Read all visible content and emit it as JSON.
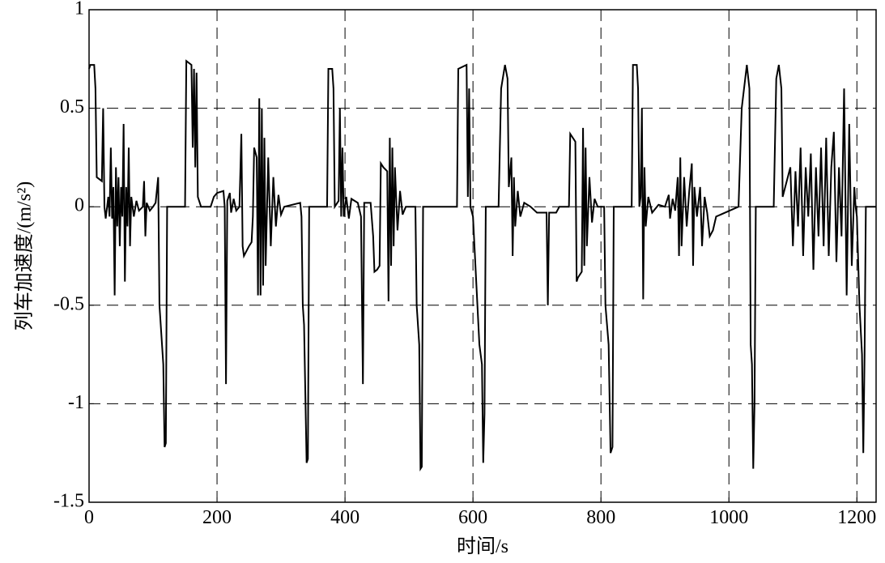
{
  "chart_data": {
    "type": "line",
    "xlabel": "时间/s",
    "ylabel": "列车加速度/(m/s²)",
    "xlim": [
      0,
      1230
    ],
    "ylim": [
      -1.5,
      1
    ],
    "xticks": [
      0,
      200,
      400,
      600,
      800,
      1000,
      1200
    ],
    "yticks": [
      -1.5,
      -1,
      -0.5,
      0,
      0.5,
      1
    ],
    "grid": true,
    "x": [
      0,
      2,
      8,
      10,
      12,
      20,
      22,
      24,
      26,
      30,
      32,
      34,
      36,
      38,
      40,
      42,
      44,
      46,
      48,
      50,
      52,
      54,
      56,
      58,
      60,
      62,
      64,
      66,
      70,
      74,
      78,
      84,
      86,
      88,
      90,
      95,
      100,
      104,
      108,
      110,
      112,
      116,
      118,
      120,
      122,
      150,
      152,
      160,
      162,
      164,
      166,
      168,
      170,
      175,
      190,
      195,
      200,
      210,
      212,
      214,
      216,
      220,
      222,
      226,
      230,
      235,
      238,
      240,
      242,
      250,
      254,
      256,
      258,
      262,
      264,
      266,
      268,
      270,
      272,
      274,
      276,
      280,
      284,
      288,
      292,
      296,
      300,
      305,
      330,
      332,
      334,
      336,
      338,
      340,
      342,
      344,
      372,
      374,
      380,
      382,
      384,
      390,
      392,
      394,
      396,
      398,
      402,
      406,
      410,
      420,
      425,
      428,
      430,
      440,
      444,
      446,
      450,
      454,
      456,
      460,
      466,
      468,
      470,
      472,
      474,
      476,
      478,
      482,
      486,
      490,
      495,
      510,
      512,
      516,
      518,
      520,
      522,
      575,
      577,
      590,
      592,
      594,
      596,
      600,
      610,
      614,
      616,
      618,
      620,
      640,
      644,
      650,
      654,
      656,
      660,
      662,
      664,
      666,
      670,
      674,
      680,
      690,
      700,
      715,
      717,
      719,
      730,
      735,
      750,
      752,
      760,
      762,
      764,
      770,
      772,
      774,
      776,
      778,
      782,
      786,
      790,
      795,
      805,
      807,
      812,
      815,
      818,
      820,
      848,
      850,
      856,
      858,
      860,
      862,
      864,
      866,
      868,
      870,
      874,
      880,
      890,
      900,
      906,
      908,
      912,
      916,
      920,
      922,
      924,
      926,
      930,
      934,
      938,
      942,
      944,
      946,
      950,
      955,
      958,
      962,
      966,
      970,
      975,
      980,
      1015,
      1020,
      1028,
      1032,
      1034,
      1036,
      1038,
      1040,
      1042,
      1070,
      1074,
      1078,
      1082,
      1084,
      1096,
      1100,
      1104,
      1108,
      1112,
      1116,
      1120,
      1124,
      1128,
      1132,
      1136,
      1140,
      1144,
      1148,
      1152,
      1156,
      1160,
      1164,
      1168,
      1172,
      1176,
      1180,
      1184,
      1188,
      1192,
      1196,
      1198,
      1200,
      1204,
      1208,
      1210,
      1212,
      1214,
      1230
    ],
    "series": [
      {
        "color": "#000000",
        "values": [
          0.7,
          0.72,
          0.72,
          0.6,
          0.15,
          0.13,
          0.5,
          0,
          -0.06,
          0.05,
          -0.05,
          0.3,
          -0.06,
          0.1,
          -0.45,
          0.2,
          -0.1,
          0.15,
          -0.2,
          0.1,
          -0.05,
          0.42,
          -0.38,
          0.1,
          -0.1,
          0.3,
          -0.2,
          0.05,
          -0.05,
          0.03,
          -0.02,
          0,
          0.13,
          -0.15,
          0.02,
          -0.02,
          0,
          0.02,
          0.15,
          -0.5,
          -0.6,
          -0.8,
          -1.22,
          -1.2,
          0,
          0,
          0.74,
          0.72,
          0.3,
          0.7,
          0.2,
          0.68,
          0.05,
          0,
          0,
          0.05,
          0.07,
          0.08,
          0,
          -0.9,
          0.03,
          0.07,
          -0.03,
          0.04,
          -0.02,
          0,
          0.37,
          -0.2,
          -0.25,
          -0.2,
          -0.18,
          -0.05,
          0.3,
          0.25,
          -0.45,
          0.55,
          -0.45,
          0.5,
          -0.4,
          0.35,
          -0.3,
          0.25,
          -0.2,
          0.15,
          -0.1,
          0.06,
          -0.04,
          0,
          0.02,
          -0.05,
          -0.5,
          -0.6,
          -0.95,
          -1.3,
          -1.28,
          0,
          0,
          0.7,
          0.7,
          0.6,
          0,
          0.03,
          0.5,
          -0.05,
          0.3,
          -0.05,
          0.05,
          -0.06,
          0.04,
          0.02,
          -0.05,
          -0.9,
          0.02,
          0.02,
          -0.15,
          -0.33,
          -0.32,
          -0.3,
          0.22,
          0.2,
          0.18,
          -0.48,
          0.35,
          -0.3,
          0.3,
          -0.2,
          0.2,
          -0.12,
          0.08,
          -0.04,
          0,
          0,
          -0.5,
          -0.7,
          -1.33,
          -1.32,
          0,
          0,
          0.7,
          0.72,
          0.05,
          0.6,
          0,
          -0.05,
          -0.7,
          -0.8,
          -1.3,
          -1.05,
          0,
          0,
          0.6,
          0.72,
          0.65,
          0.1,
          0.25,
          -0.25,
          0.15,
          -0.1,
          0.08,
          -0.05,
          0.02,
          0,
          -0.03,
          -0.03,
          -0.5,
          -0.03,
          -0.03,
          0,
          0,
          0.37,
          0.33,
          -0.38,
          -0.36,
          -0.33,
          0.4,
          -0.3,
          0.3,
          -0.2,
          0.15,
          -0.08,
          0.04,
          0,
          0,
          -0.5,
          -0.7,
          -1.25,
          -1.22,
          0,
          0,
          0.72,
          0.72,
          0.6,
          0,
          0.05,
          0.5,
          -0.47,
          0.2,
          -0.1,
          0.05,
          -0.03,
          0.01,
          0,
          0.06,
          -0.06,
          0.04,
          -0.02,
          0.15,
          -0.25,
          0.25,
          -0.2,
          0.15,
          -0.1,
          0.08,
          0.22,
          -0.3,
          0.1,
          -0.05,
          0.1,
          -0.2,
          0.05,
          -0.03,
          -0.15,
          -0.12,
          -0.05,
          0,
          0.5,
          0.72,
          0.6,
          -0.7,
          -0.8,
          -1.33,
          -1.0,
          0,
          0,
          0.65,
          0.72,
          0.6,
          0.05,
          0.2,
          -0.2,
          0.18,
          -0.1,
          0.3,
          -0.25,
          0.2,
          -0.05,
          0.27,
          -0.32,
          0.2,
          -0.15,
          0.3,
          -0.2,
          0.35,
          -0.25,
          0.2,
          0.38,
          -0.28,
          0.2,
          -0.15,
          0.6,
          -0.45,
          0.42,
          -0.3,
          0.1,
          0,
          -0.05,
          -0.5,
          -0.75,
          -1.25,
          -0.75,
          0,
          0
        ]
      }
    ]
  }
}
